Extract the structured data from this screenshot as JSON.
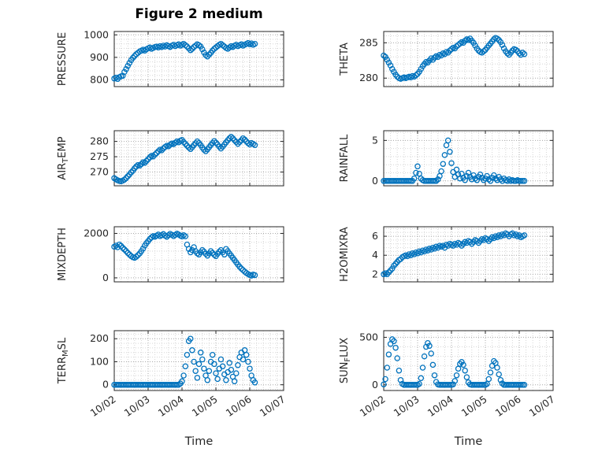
{
  "title": "Figure 2 medium",
  "colors": {
    "marker": "#0072BD",
    "axis": "#262626",
    "text": "#262626",
    "grid_major": "#a8a8a8",
    "grid_minor": "#d6d6d6",
    "background": "#ffffff"
  },
  "chart_data": {
    "type": "scatter",
    "layout": "4x2 subplot grid, shared x axis",
    "xlabel": "Time",
    "xlim": [
      0,
      5
    ],
    "x_unit": "days since 10/02",
    "x_ticks": {
      "values": [
        0,
        1,
        2,
        3,
        4,
        5
      ],
      "labels": [
        "10/02",
        "10/03",
        "10/04",
        "10/05",
        "10/06",
        "10/07"
      ]
    },
    "x": [
      0,
      0.05,
      0.1,
      0.15,
      0.2,
      0.25,
      0.3,
      0.35,
      0.4,
      0.45,
      0.5,
      0.55,
      0.6,
      0.65,
      0.7,
      0.75,
      0.8,
      0.85,
      0.9,
      0.95,
      1,
      1.05,
      1.1,
      1.15,
      1.2,
      1.25,
      1.3,
      1.35,
      1.4,
      1.45,
      1.5,
      1.55,
      1.6,
      1.65,
      1.7,
      1.75,
      1.8,
      1.85,
      1.9,
      1.95,
      2,
      2.05,
      2.1,
      2.15,
      2.2,
      2.25,
      2.3,
      2.35,
      2.4,
      2.45,
      2.5,
      2.55,
      2.6,
      2.65,
      2.7,
      2.75,
      2.8,
      2.85,
      2.9,
      2.95,
      3,
      3.05,
      3.1,
      3.15,
      3.2,
      3.25,
      3.3,
      3.35,
      3.4,
      3.45,
      3.5,
      3.55,
      3.6,
      3.65,
      3.7,
      3.75,
      3.8,
      3.85,
      3.9,
      3.95,
      4,
      4.05,
      4.1,
      4.15
    ],
    "subplots": [
      {
        "name": "PRESSURE",
        "label_raw": "PRESSURE",
        "ylabel_parts": [
          {
            "text": "PRESSURE",
            "sub": false
          }
        ],
        "ylim": [
          770,
          1015
        ],
        "yticks": [
          800,
          900,
          1000
        ],
        "y": [
          806,
          810,
          804,
          812,
          816,
          818,
          835,
          848,
          862,
          875,
          888,
          898,
          906,
          914,
          920,
          926,
          930,
          934,
          930,
          936,
          940,
          944,
          938,
          942,
          946,
          948,
          944,
          950,
          946,
          952,
          948,
          954,
          950,
          946,
          952,
          956,
          950,
          954,
          958,
          952,
          956,
          960,
          954,
          948,
          940,
          932,
          938,
          946,
          952,
          958,
          954,
          948,
          936,
          922,
          910,
          904,
          912,
          920,
          930,
          938,
          944,
          950,
          956,
          960,
          954,
          948,
          942,
          938,
          944,
          950,
          946,
          952,
          956,
          950,
          954,
          958,
          952,
          956,
          960,
          964,
          958,
          962,
          956,
          960
        ]
      },
      {
        "name": "THETA",
        "label_raw": "THETA",
        "ylabel_parts": [
          {
            "text": "THETA",
            "sub": false
          }
        ],
        "ylim": [
          278.8,
          286.6
        ],
        "yticks": [
          280,
          285
        ],
        "y": [
          283.2,
          283.0,
          282.6,
          282.2,
          281.8,
          281.3,
          280.9,
          280.5,
          280.2,
          280.0,
          279.9,
          280.0,
          280.1,
          280.0,
          280.1,
          280.2,
          280.1,
          280.3,
          280.2,
          280.4,
          280.6,
          280.9,
          281.3,
          281.7,
          282.0,
          282.3,
          282.2,
          282.5,
          282.8,
          282.6,
          282.9,
          283.1,
          283.0,
          283.3,
          283.2,
          283.5,
          283.4,
          283.7,
          283.6,
          283.9,
          284.1,
          284.3,
          284.2,
          284.5,
          284.7,
          284.9,
          285.1,
          285.0,
          285.3,
          285.5,
          285.4,
          285.6,
          285.3,
          285.0,
          284.6,
          284.2,
          283.9,
          283.7,
          283.6,
          283.8,
          284.0,
          284.3,
          284.6,
          284.9,
          285.2,
          285.5,
          285.7,
          285.6,
          285.4,
          285.1,
          284.7,
          284.2,
          283.8,
          283.5,
          283.3,
          283.6,
          283.9,
          284.1,
          284.0,
          283.8,
          283.5,
          283.3,
          283.6,
          283.4
        ]
      },
      {
        "name": "AIR_TEMP",
        "label_raw": "AIR_TEMP",
        "ylabel_parts": [
          {
            "text": "AIR",
            "sub": false
          },
          {
            "text": "T",
            "sub": true
          },
          {
            "text": "EMP",
            "sub": false
          }
        ],
        "ylim": [
          265.5,
          283.5
        ],
        "yticks": [
          270,
          275,
          280
        ],
        "y": [
          268.0,
          267.6,
          267.3,
          267.1,
          267.0,
          267.2,
          267.5,
          268.0,
          268.6,
          269.2,
          269.9,
          270.5,
          271.2,
          271.8,
          272.3,
          272.1,
          272.6,
          273.2,
          273.0,
          273.6,
          274.2,
          274.8,
          275.3,
          275.1,
          275.7,
          276.2,
          276.8,
          277.3,
          277.1,
          277.7,
          278.2,
          278.6,
          278.4,
          278.9,
          279.3,
          279.1,
          279.6,
          280.0,
          279.7,
          280.2,
          280.5,
          279.8,
          279.2,
          278.6,
          278.0,
          277.5,
          278.1,
          278.8,
          279.4,
          280.0,
          279.5,
          278.8,
          278.0,
          277.3,
          276.8,
          277.4,
          278.1,
          278.8,
          279.5,
          280.1,
          279.6,
          279.0,
          278.3,
          277.7,
          278.3,
          279.0,
          279.7,
          280.4,
          281.0,
          281.5,
          281.0,
          280.4,
          279.8,
          279.2,
          279.8,
          280.4,
          281.0,
          280.6,
          280.0,
          279.4,
          279.0,
          279.5,
          279.2,
          278.8
        ]
      },
      {
        "name": "RAINFALL",
        "label_raw": "RAINFALL",
        "ylabel_parts": [
          {
            "text": "RAINFALL",
            "sub": false
          }
        ],
        "ylim": [
          -0.6,
          6.2
        ],
        "yticks": [
          0,
          5
        ],
        "y": [
          0,
          0,
          0,
          0,
          0,
          0,
          0,
          0,
          0,
          0,
          0,
          0,
          0,
          0,
          0,
          0,
          0,
          0,
          0.3,
          1.0,
          1.8,
          0.9,
          0.3,
          0.1,
          0,
          0,
          0,
          0,
          0,
          0,
          0,
          0,
          0.2,
          0.6,
          1.2,
          2.1,
          3.2,
          4.4,
          5.0,
          3.6,
          2.2,
          1.1,
          0.5,
          1.4,
          0.8,
          0.3,
          0.9,
          0.4,
          0.1,
          0.6,
          1.0,
          0.5,
          0.2,
          0.7,
          0.3,
          0.1,
          0.5,
          0.8,
          0.4,
          0.1,
          0.3,
          0.6,
          0.2,
          0,
          0.4,
          0.7,
          0.3,
          0.1,
          0.5,
          0.2,
          0,
          0.3,
          0.1,
          0,
          0.2,
          0,
          0.1,
          0,
          0,
          0.1,
          0,
          0,
          0,
          0
        ]
      },
      {
        "name": "MIXDEPTH",
        "label_raw": "MIXDEPTH",
        "ylabel_parts": [
          {
            "text": "MIXDEPTH",
            "sub": false
          }
        ],
        "ylim": [
          -180,
          2300
        ],
        "yticks": [
          0,
          2000
        ],
        "y": [
          1400,
          1450,
          1380,
          1500,
          1440,
          1350,
          1280,
          1200,
          1120,
          1050,
          980,
          930,
          900,
          950,
          1020,
          1100,
          1200,
          1320,
          1450,
          1560,
          1650,
          1750,
          1820,
          1880,
          1850,
          1900,
          1950,
          1880,
          1920,
          1970,
          1900,
          1850,
          1920,
          1980,
          1940,
          1880,
          1930,
          1990,
          1950,
          1900,
          1860,
          1920,
          1870,
          1500,
          1300,
          1150,
          1250,
          1380,
          1200,
          1100,
          1050,
          1150,
          1250,
          1180,
          1080,
          1000,
          1100,
          1200,
          1120,
          1040,
          980,
          1080,
          1180,
          1250,
          1150,
          1050,
          1300,
          1200,
          1100,
          1000,
          900,
          800,
          700,
          600,
          500,
          420,
          350,
          280,
          220,
          170,
          130,
          100,
          150,
          120
        ]
      },
      {
        "name": "H2OMIXRA",
        "label_raw": "H2OMIXRA",
        "ylabel_parts": [
          {
            "text": "H2OMIXRA",
            "sub": false
          }
        ],
        "ylim": [
          1.2,
          7.0
        ],
        "yticks": [
          2,
          4,
          6
        ],
        "y": [
          2.0,
          2.1,
          2.0,
          2.2,
          2.4,
          2.6,
          2.9,
          3.1,
          3.3,
          3.5,
          3.6,
          3.8,
          3.9,
          4.0,
          3.9,
          4.1,
          4.0,
          4.2,
          4.1,
          4.3,
          4.2,
          4.4,
          4.3,
          4.5,
          4.4,
          4.6,
          4.5,
          4.7,
          4.6,
          4.8,
          4.7,
          4.9,
          4.8,
          5.0,
          4.9,
          5.0,
          4.8,
          5.1,
          5.0,
          5.2,
          5.1,
          5.0,
          5.2,
          5.1,
          5.3,
          5.2,
          5.0,
          5.2,
          5.4,
          5.3,
          5.5,
          5.4,
          5.2,
          5.4,
          5.6,
          5.5,
          5.3,
          5.5,
          5.7,
          5.6,
          5.8,
          5.7,
          5.5,
          5.7,
          5.9,
          5.8,
          6.0,
          5.9,
          6.1,
          6.0,
          6.2,
          6.1,
          6.3,
          6.2,
          6.0,
          6.2,
          6.3,
          6.1,
          6.2,
          6.0,
          6.1,
          5.9,
          6.0,
          6.1
        ]
      },
      {
        "name": "TERR_MSL",
        "label_raw": "TERR_MSL",
        "ylabel_parts": [
          {
            "text": "TERR",
            "sub": false
          },
          {
            "text": "M",
            "sub": true
          },
          {
            "text": "SL",
            "sub": false
          }
        ],
        "ylim": [
          -25,
          235
        ],
        "yticks": [
          0,
          100,
          200
        ],
        "y": [
          0,
          0,
          0,
          0,
          0,
          0,
          0,
          0,
          0,
          0,
          0,
          0,
          0,
          0,
          0,
          0,
          0,
          0,
          0,
          0,
          0,
          0,
          0,
          0,
          0,
          0,
          0,
          0,
          0,
          0,
          0,
          0,
          0,
          0,
          0,
          0,
          0,
          0,
          0,
          5,
          15,
          40,
          80,
          130,
          190,
          200,
          150,
          100,
          60,
          30,
          90,
          140,
          110,
          70,
          40,
          20,
          60,
          100,
          130,
          90,
          50,
          25,
          70,
          110,
          80,
          45,
          20,
          55,
          95,
          65,
          35,
          15,
          50,
          85,
          120,
          140,
          110,
          150,
          130,
          100,
          70,
          40,
          20,
          10
        ]
      },
      {
        "name": "SUN_FLUX",
        "label_raw": "SUN_FLUX",
        "ylabel_parts": [
          {
            "text": "SUN",
            "sub": false
          },
          {
            "text": "F",
            "sub": true
          },
          {
            "text": "LUX",
            "sub": false
          }
        ],
        "ylim": [
          -60,
          570
        ],
        "yticks": [
          0,
          500
        ],
        "y": [
          5,
          60,
          180,
          320,
          430,
          480,
          460,
          390,
          280,
          150,
          50,
          10,
          0,
          0,
          0,
          0,
          0,
          0,
          0,
          0,
          0,
          10,
          70,
          180,
          300,
          400,
          440,
          410,
          330,
          210,
          100,
          30,
          5,
          0,
          0,
          0,
          0,
          0,
          0,
          0,
          0,
          5,
          40,
          100,
          170,
          220,
          240,
          210,
          150,
          80,
          25,
          5,
          0,
          0,
          0,
          0,
          0,
          0,
          0,
          0,
          0,
          10,
          60,
          130,
          200,
          250,
          230,
          180,
          110,
          50,
          15,
          0,
          0,
          0,
          0,
          0,
          0,
          0,
          0,
          0,
          0,
          0,
          0,
          0
        ]
      }
    ]
  }
}
